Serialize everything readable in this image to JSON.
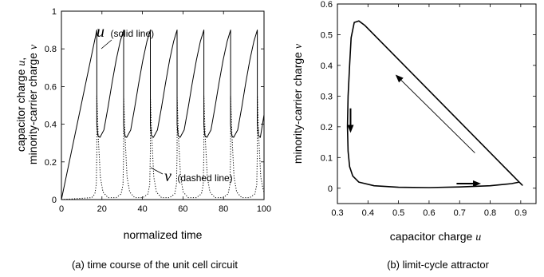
{
  "chart_data": [
    {
      "id": "a",
      "type": "line",
      "caption": "(a) time course of the unit cell circuit",
      "xlabel": "normalized time",
      "ylabel_line1": "capacitor charge u,",
      "ylabel_line2": "minority-carrier charge v",
      "ylabel_line1_text": "capacitor charge ",
      "ylabel_line1_var": "u",
      "ylabel_line1_suffix": ",",
      "ylabel_line2_text": "minority-carrier charge ",
      "ylabel_line2_var": "v",
      "xlim": [
        0,
        100
      ],
      "ylim": [
        0,
        1
      ],
      "xticks": [
        0,
        20,
        40,
        60,
        80,
        100
      ],
      "yticks": [
        0,
        0.2,
        0.4,
        0.6,
        0.8,
        1
      ],
      "ytick_labels": [
        "0",
        "0.2",
        "0.4",
        "0.6",
        "0.8",
        "1"
      ],
      "annotations": [
        {
          "var": "u",
          "text": "(solid line)"
        },
        {
          "var": "v",
          "text": "(dashed line)"
        }
      ],
      "series": [
        {
          "style": "solid",
          "x": [
            0,
            17.5,
            17.5,
            18,
            19,
            21,
            23,
            25,
            27,
            29,
            30.7,
            30.7,
            31.2,
            32.2,
            34.2,
            36.2,
            38.2,
            40.2,
            42.2,
            43.9,
            43.9,
            44.4,
            45.4,
            47.4,
            49.4,
            51.4,
            53.4,
            55.4,
            57.1,
            57.1,
            57.6,
            58.6,
            60.6,
            62.6,
            64.6,
            66.6,
            68.6,
            70.3,
            70.3,
            70.8,
            71.8,
            73.8,
            75.8,
            77.8,
            79.8,
            81.8,
            83.5,
            83.5,
            84,
            85,
            87,
            89,
            91,
            93,
            95,
            96.7,
            96.7,
            97.2,
            98.2,
            100
          ],
          "y": [
            0,
            0.9,
            0.4,
            0.34,
            0.33,
            0.37,
            0.49,
            0.62,
            0.74,
            0.84,
            0.9,
            0.4,
            0.34,
            0.33,
            0.37,
            0.49,
            0.62,
            0.74,
            0.84,
            0.9,
            0.4,
            0.34,
            0.33,
            0.37,
            0.49,
            0.62,
            0.74,
            0.84,
            0.9,
            0.4,
            0.34,
            0.33,
            0.37,
            0.49,
            0.62,
            0.74,
            0.84,
            0.9,
            0.4,
            0.34,
            0.33,
            0.37,
            0.49,
            0.62,
            0.74,
            0.84,
            0.9,
            0.4,
            0.34,
            0.33,
            0.37,
            0.49,
            0.62,
            0.74,
            0.84,
            0.9,
            0.4,
            0.34,
            0.33,
            0.45
          ]
        },
        {
          "style": "dotted",
          "x": [
            0,
            15,
            16.5,
            17.2,
            17.5,
            17.5,
            18.2,
            19.2,
            20.5,
            23,
            27,
            29.5,
            30.4,
            30.7,
            30.7,
            31.4,
            32.4,
            33.7,
            36.2,
            40.2,
            42.7,
            43.6,
            43.9,
            43.9,
            44.6,
            45.6,
            46.9,
            49.4,
            53.4,
            55.9,
            56.8,
            57.1,
            57.1,
            57.8,
            58.8,
            60.1,
            62.6,
            66.6,
            69.1,
            70,
            70.3,
            70.3,
            71,
            72,
            73.3,
            75.8,
            79.8,
            82.3,
            83.2,
            83.5,
            83.5,
            84.2,
            85.2,
            86.5,
            89,
            93,
            95.5,
            96.4,
            96.7,
            96.7,
            97.4,
            98.4,
            99.4,
            100
          ],
          "y": [
            0,
            0.01,
            0.03,
            0.08,
            0.25,
            0.55,
            0.33,
            0.12,
            0.04,
            0.01,
            0.01,
            0.03,
            0.08,
            0.25,
            0.55,
            0.33,
            0.12,
            0.04,
            0.01,
            0.01,
            0.03,
            0.08,
            0.25,
            0.55,
            0.33,
            0.12,
            0.04,
            0.01,
            0.01,
            0.03,
            0.08,
            0.25,
            0.55,
            0.33,
            0.12,
            0.04,
            0.01,
            0.01,
            0.03,
            0.08,
            0.25,
            0.55,
            0.33,
            0.12,
            0.04,
            0.01,
            0.01,
            0.03,
            0.08,
            0.25,
            0.55,
            0.33,
            0.12,
            0.04,
            0.01,
            0.01,
            0.03,
            0.08,
            0.25,
            0.55,
            0.33,
            0.12,
            0.06,
            0.04
          ]
        }
      ]
    },
    {
      "id": "b",
      "type": "line",
      "caption": "(b) limit-cycle attractor",
      "xlabel": "capacitor charge u",
      "xlabel_text": "capacitor charge ",
      "xlabel_var": "u",
      "ylabel": "minority-carrier charge v",
      "ylabel_text": "minority-carrier charge ",
      "ylabel_var": "v",
      "xlim": [
        0.3,
        0.95
      ],
      "ylim": [
        -0.05,
        0.6
      ],
      "xticks": [
        0.3,
        0.4,
        0.5,
        0.6,
        0.7,
        0.8,
        0.9
      ],
      "xtick_labels": [
        "0.3",
        "0.4",
        "0.5",
        "0.6",
        "0.7",
        "0.8",
        "0.9"
      ],
      "yticks": [
        0,
        0.1,
        0.2,
        0.3,
        0.4,
        0.5,
        0.6
      ],
      "ytick_labels": [
        "0",
        "0.1",
        "0.2",
        "0.3",
        "0.4",
        "0.5",
        "0.6"
      ],
      "series": [
        {
          "style": "solid",
          "x": [
            0.9,
            0.39,
            0.37,
            0.355,
            0.345,
            0.34,
            0.335,
            0.333,
            0.335,
            0.34,
            0.35,
            0.37,
            0.42,
            0.5,
            0.6,
            0.7,
            0.8,
            0.87,
            0.895,
            0.905,
            0.9
          ],
          "y": [
            0.015,
            0.53,
            0.545,
            0.54,
            0.49,
            0.4,
            0.3,
            0.2,
            0.12,
            0.07,
            0.04,
            0.02,
            0.008,
            0.003,
            0.002,
            0.004,
            0.008,
            0.015,
            0.02,
            0.01,
            0.015
          ]
        }
      ],
      "arrows": [
        {
          "from": [
            0.75,
            0.115
          ],
          "to": [
            0.49,
            0.37
          ]
        },
        {
          "from": [
            0.343,
            0.26
          ],
          "to": [
            0.343,
            0.18
          ]
        },
        {
          "from": [
            0.69,
            0.015
          ],
          "to": [
            0.77,
            0.015
          ]
        }
      ]
    }
  ]
}
